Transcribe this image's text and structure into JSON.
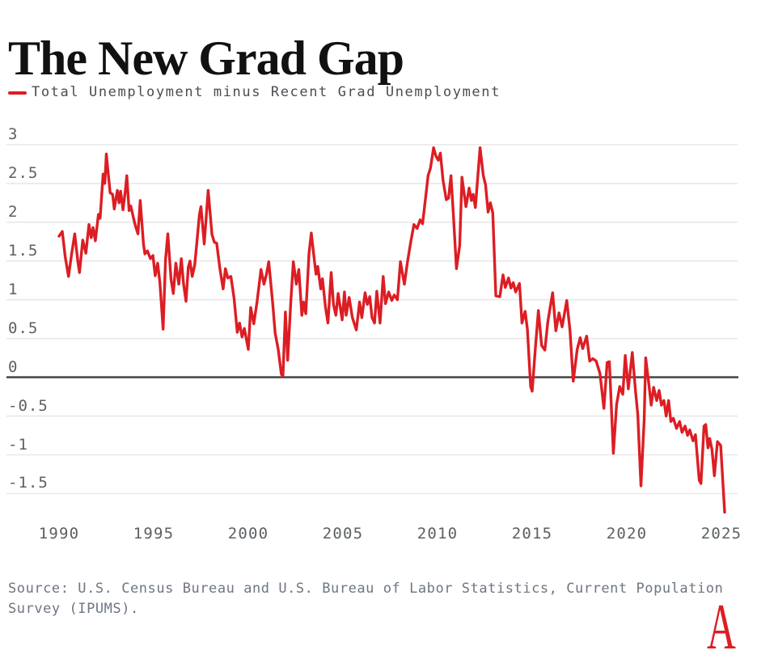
{
  "header": {
    "title": "The New Grad Gap"
  },
  "legend": {
    "label": "Total Unemployment minus Recent Grad Unemployment"
  },
  "footer": {
    "source": "Source: U.S. Census Bureau and U.S. Bureau of Labor Statistics, Current Population Survey (IPUMS).",
    "logo_letter": "A"
  },
  "colors": {
    "background": "#ffffff",
    "title_text": "#111111",
    "legend_text": "#4a4e52",
    "axis_text": "#5c6063",
    "source_text": "#6e7682",
    "grid": "#e8e8e8",
    "zero_line": "#4c4c4c",
    "line": "#dc1e24"
  },
  "chart_data": {
    "type": "line",
    "title": "The New Grad Gap",
    "xlabel": "",
    "ylabel": "",
    "legend_position": "top-left",
    "grid": "horizontal",
    "zero_baseline": true,
    "x_ticks": [
      1990,
      1995,
      2000,
      2005,
      2010,
      2015,
      2020,
      2025
    ],
    "y_ticks": [
      3,
      2.5,
      2,
      1.5,
      1,
      0.5,
      0,
      -0.5,
      -1,
      -1.5
    ],
    "y_tick_labels": [
      "3",
      "2.5",
      "2",
      "1.5",
      "1",
      "0.5",
      "0",
      "-0.5",
      "-1",
      "-1.5"
    ],
    "xlim": [
      1990,
      2025.2
    ],
    "ylim": [
      -1.85,
      3.05
    ],
    "series": [
      {
        "name": "Total Unemployment minus Recent Grad Unemployment",
        "points": [
          [
            1990.0,
            1.82
          ],
          [
            1990.17,
            1.88
          ],
          [
            1990.33,
            1.55
          ],
          [
            1990.5,
            1.3
          ],
          [
            1990.67,
            1.6
          ],
          [
            1990.83,
            1.85
          ],
          [
            1991.0,
            1.48
          ],
          [
            1991.08,
            1.35
          ],
          [
            1991.25,
            1.77
          ],
          [
            1991.42,
            1.6
          ],
          [
            1991.58,
            1.97
          ],
          [
            1991.7,
            1.8
          ],
          [
            1991.8,
            1.93
          ],
          [
            1991.92,
            1.76
          ],
          [
            1992.08,
            2.1
          ],
          [
            1992.17,
            2.05
          ],
          [
            1992.33,
            2.62
          ],
          [
            1992.42,
            2.5
          ],
          [
            1992.5,
            2.88
          ],
          [
            1992.58,
            2.67
          ],
          [
            1992.7,
            2.38
          ],
          [
            1992.83,
            2.36
          ],
          [
            1992.92,
            2.17
          ],
          [
            1993.08,
            2.41
          ],
          [
            1993.17,
            2.25
          ],
          [
            1993.25,
            2.4
          ],
          [
            1993.38,
            2.16
          ],
          [
            1993.5,
            2.4
          ],
          [
            1993.58,
            2.6
          ],
          [
            1993.7,
            2.15
          ],
          [
            1993.79,
            2.21
          ],
          [
            1993.92,
            2.07
          ],
          [
            1994.04,
            1.95
          ],
          [
            1994.17,
            1.85
          ],
          [
            1994.29,
            2.28
          ],
          [
            1994.46,
            1.72
          ],
          [
            1994.54,
            1.59
          ],
          [
            1994.67,
            1.63
          ],
          [
            1994.83,
            1.53
          ],
          [
            1994.96,
            1.57
          ],
          [
            1995.08,
            1.31
          ],
          [
            1995.21,
            1.47
          ],
          [
            1995.33,
            1.22
          ],
          [
            1995.5,
            0.62
          ],
          [
            1995.63,
            1.52
          ],
          [
            1995.75,
            1.85
          ],
          [
            1995.92,
            1.26
          ],
          [
            1996.04,
            1.08
          ],
          [
            1996.17,
            1.47
          ],
          [
            1996.33,
            1.2
          ],
          [
            1996.46,
            1.53
          ],
          [
            1996.58,
            1.2
          ],
          [
            1996.71,
            0.98
          ],
          [
            1996.83,
            1.42
          ],
          [
            1996.92,
            1.5
          ],
          [
            1997.04,
            1.3
          ],
          [
            1997.17,
            1.45
          ],
          [
            1997.29,
            1.76
          ],
          [
            1997.42,
            2.1
          ],
          [
            1997.5,
            2.2
          ],
          [
            1997.67,
            1.72
          ],
          [
            1997.88,
            2.41
          ],
          [
            1998.08,
            1.84
          ],
          [
            1998.21,
            1.74
          ],
          [
            1998.33,
            1.73
          ],
          [
            1998.5,
            1.4
          ],
          [
            1998.67,
            1.14
          ],
          [
            1998.79,
            1.4
          ],
          [
            1998.92,
            1.28
          ],
          [
            1999.08,
            1.3
          ],
          [
            1999.25,
            1.02
          ],
          [
            1999.42,
            0.58
          ],
          [
            1999.54,
            0.7
          ],
          [
            1999.67,
            0.52
          ],
          [
            1999.79,
            0.63
          ],
          [
            2000.0,
            0.36
          ],
          [
            2000.13,
            0.9
          ],
          [
            2000.29,
            0.69
          ],
          [
            2000.46,
            0.97
          ],
          [
            2000.67,
            1.39
          ],
          [
            2000.83,
            1.2
          ],
          [
            2000.96,
            1.33
          ],
          [
            2001.08,
            1.49
          ],
          [
            2001.29,
            0.95
          ],
          [
            2001.42,
            0.57
          ],
          [
            2001.58,
            0.36
          ],
          [
            2001.75,
            0.04
          ],
          [
            2001.83,
            0.01
          ],
          [
            2001.96,
            0.84
          ],
          [
            2002.08,
            0.22
          ],
          [
            2002.25,
            0.98
          ],
          [
            2002.38,
            1.49
          ],
          [
            2002.54,
            1.2
          ],
          [
            2002.67,
            1.39
          ],
          [
            2002.83,
            0.8
          ],
          [
            2002.92,
            0.97
          ],
          [
            2003.04,
            0.82
          ],
          [
            2003.21,
            1.6
          ],
          [
            2003.33,
            1.86
          ],
          [
            2003.5,
            1.49
          ],
          [
            2003.58,
            1.33
          ],
          [
            2003.67,
            1.43
          ],
          [
            2003.83,
            1.14
          ],
          [
            2003.92,
            1.27
          ],
          [
            2004.08,
            0.9
          ],
          [
            2004.21,
            0.7
          ],
          [
            2004.38,
            1.35
          ],
          [
            2004.5,
            0.94
          ],
          [
            2004.63,
            0.8
          ],
          [
            2004.75,
            1.08
          ],
          [
            2004.96,
            0.74
          ],
          [
            2005.08,
            1.1
          ],
          [
            2005.17,
            0.8
          ],
          [
            2005.33,
            1.03
          ],
          [
            2005.5,
            0.77
          ],
          [
            2005.71,
            0.61
          ],
          [
            2005.88,
            0.97
          ],
          [
            2006.0,
            0.77
          ],
          [
            2006.17,
            1.09
          ],
          [
            2006.29,
            0.94
          ],
          [
            2006.42,
            1.04
          ],
          [
            2006.54,
            0.77
          ],
          [
            2006.67,
            0.7
          ],
          [
            2006.79,
            1.11
          ],
          [
            2006.96,
            0.7
          ],
          [
            2007.13,
            1.3
          ],
          [
            2007.25,
            0.95
          ],
          [
            2007.42,
            1.1
          ],
          [
            2007.58,
            0.99
          ],
          [
            2007.71,
            1.06
          ],
          [
            2007.88,
            1.0
          ],
          [
            2008.04,
            1.49
          ],
          [
            2008.25,
            1.2
          ],
          [
            2008.42,
            1.5
          ],
          [
            2008.58,
            1.74
          ],
          [
            2008.75,
            1.97
          ],
          [
            2008.92,
            1.92
          ],
          [
            2009.08,
            2.03
          ],
          [
            2009.21,
            1.98
          ],
          [
            2009.38,
            2.34
          ],
          [
            2009.5,
            2.6
          ],
          [
            2009.63,
            2.7
          ],
          [
            2009.79,
            2.96
          ],
          [
            2009.92,
            2.85
          ],
          [
            2010.04,
            2.8
          ],
          [
            2010.15,
            2.89
          ],
          [
            2010.29,
            2.54
          ],
          [
            2010.46,
            2.29
          ],
          [
            2010.58,
            2.31
          ],
          [
            2010.71,
            2.6
          ],
          [
            2010.83,
            2.13
          ],
          [
            2011.0,
            1.4
          ],
          [
            2011.17,
            1.7
          ],
          [
            2011.29,
            2.58
          ],
          [
            2011.5,
            2.2
          ],
          [
            2011.67,
            2.44
          ],
          [
            2011.79,
            2.28
          ],
          [
            2011.88,
            2.36
          ],
          [
            2012.0,
            2.19
          ],
          [
            2012.25,
            2.96
          ],
          [
            2012.42,
            2.6
          ],
          [
            2012.54,
            2.48
          ],
          [
            2012.67,
            2.13
          ],
          [
            2012.79,
            2.25
          ],
          [
            2012.92,
            2.12
          ],
          [
            2013.08,
            1.05
          ],
          [
            2013.29,
            1.04
          ],
          [
            2013.46,
            1.32
          ],
          [
            2013.58,
            1.16
          ],
          [
            2013.75,
            1.28
          ],
          [
            2013.88,
            1.15
          ],
          [
            2014.0,
            1.22
          ],
          [
            2014.13,
            1.1
          ],
          [
            2014.33,
            1.21
          ],
          [
            2014.46,
            0.7
          ],
          [
            2014.63,
            0.85
          ],
          [
            2014.75,
            0.62
          ],
          [
            2014.92,
            -0.12
          ],
          [
            2015.0,
            -0.18
          ],
          [
            2015.17,
            0.38
          ],
          [
            2015.33,
            0.86
          ],
          [
            2015.5,
            0.41
          ],
          [
            2015.67,
            0.35
          ],
          [
            2015.83,
            0.72
          ],
          [
            2016.08,
            1.09
          ],
          [
            2016.25,
            0.6
          ],
          [
            2016.42,
            0.83
          ],
          [
            2016.58,
            0.65
          ],
          [
            2016.83,
            0.99
          ],
          [
            2017.0,
            0.6
          ],
          [
            2017.17,
            -0.05
          ],
          [
            2017.38,
            0.36
          ],
          [
            2017.54,
            0.51
          ],
          [
            2017.67,
            0.37
          ],
          [
            2017.88,
            0.53
          ],
          [
            2018.04,
            0.21
          ],
          [
            2018.21,
            0.24
          ],
          [
            2018.38,
            0.21
          ],
          [
            2018.58,
            0.05
          ],
          [
            2018.79,
            -0.4
          ],
          [
            2018.96,
            0.19
          ],
          [
            2019.08,
            0.2
          ],
          [
            2019.29,
            -0.98
          ],
          [
            2019.46,
            -0.35
          ],
          [
            2019.63,
            -0.12
          ],
          [
            2019.79,
            -0.22
          ],
          [
            2019.92,
            0.28
          ],
          [
            2020.08,
            -0.15
          ],
          [
            2020.29,
            0.32
          ],
          [
            2020.46,
            -0.18
          ],
          [
            2020.58,
            -0.48
          ],
          [
            2020.75,
            -1.4
          ],
          [
            2020.92,
            -0.55
          ],
          [
            2021.0,
            0.25
          ],
          [
            2021.17,
            -0.1
          ],
          [
            2021.29,
            -0.36
          ],
          [
            2021.42,
            -0.13
          ],
          [
            2021.58,
            -0.3
          ],
          [
            2021.71,
            -0.17
          ],
          [
            2021.83,
            -0.36
          ],
          [
            2021.96,
            -0.3
          ],
          [
            2022.08,
            -0.5
          ],
          [
            2022.21,
            -0.3
          ],
          [
            2022.33,
            -0.57
          ],
          [
            2022.46,
            -0.53
          ],
          [
            2022.63,
            -0.66
          ],
          [
            2022.79,
            -0.57
          ],
          [
            2022.92,
            -0.71
          ],
          [
            2023.08,
            -0.63
          ],
          [
            2023.21,
            -0.75
          ],
          [
            2023.33,
            -0.68
          ],
          [
            2023.5,
            -0.82
          ],
          [
            2023.63,
            -0.74
          ],
          [
            2023.83,
            -1.33
          ],
          [
            2023.92,
            -1.37
          ],
          [
            2024.08,
            -0.63
          ],
          [
            2024.17,
            -0.61
          ],
          [
            2024.29,
            -0.91
          ],
          [
            2024.38,
            -0.79
          ],
          [
            2024.5,
            -0.93
          ],
          [
            2024.63,
            -1.27
          ],
          [
            2024.79,
            -0.83
          ],
          [
            2024.96,
            -0.88
          ],
          [
            2025.17,
            -1.74
          ]
        ]
      }
    ]
  }
}
